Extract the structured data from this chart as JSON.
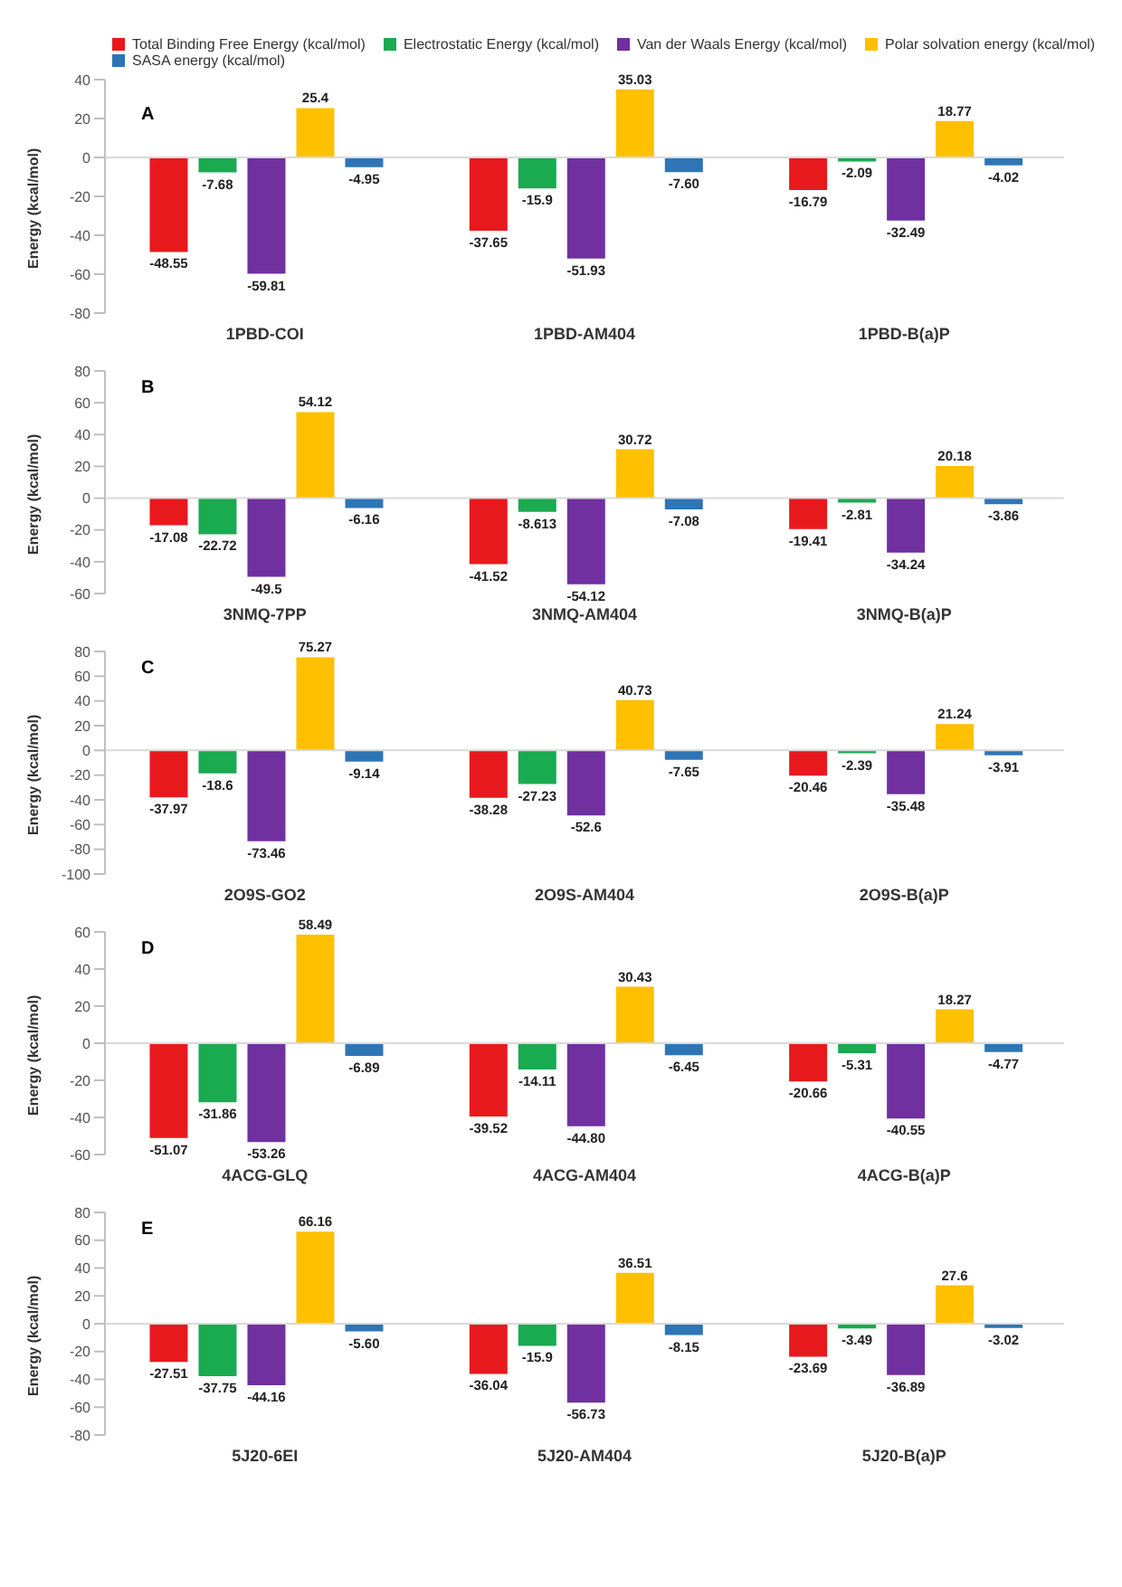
{
  "chart_data": [
    {
      "type": "bar",
      "ylabel": "Energy (kcal/mol)",
      "annotations": [
        "A"
      ],
      "categories": [
        "1PBD-COI",
        "1PBD-AM404",
        "1PBD-B(a)P"
      ],
      "legend": "top",
      "ylim": [
        -80,
        40
      ],
      "yticks": [
        -80,
        -60,
        -40,
        -20,
        0,
        20,
        40
      ],
      "ref_lines": [
        {
          "axis": "y",
          "value": 0,
          "color": "#d9d9d9"
        }
      ],
      "series": [
        {
          "name": "Total Binding Free Energy (kcal/mol)",
          "color": "#e8191d",
          "values": [
            -48.55,
            -37.65,
            -16.79
          ],
          "value_labels": [
            "-48.55",
            "-37.65",
            "-16.79"
          ]
        },
        {
          "name": "Electrostatic Energy (kcal/mol)",
          "color": "#1aaa50",
          "values": [
            -7.68,
            -15.9,
            -2.09
          ],
          "value_labels": [
            "-7.68",
            "-15.9",
            "-2.09"
          ]
        },
        {
          "name": "Van der Waals Energy (kcal/mol)",
          "color": "#7030a0",
          "values": [
            -59.81,
            -51.93,
            -32.49
          ],
          "value_labels": [
            "-59.81",
            "-51.93",
            "-32.49"
          ]
        },
        {
          "name": "Polar solvation energy (kcal/mol)",
          "color": "#ffc000",
          "values": [
            25.4,
            35.03,
            18.77
          ],
          "value_labels": [
            "25.4",
            "35.03",
            "18.77"
          ]
        },
        {
          "name": "SASA energy (kcal/mol)",
          "color": "#2e75b6",
          "values": [
            -4.95,
            -7.6,
            -4.02
          ],
          "value_labels": [
            "-4.95",
            "-7.60",
            "-4.02"
          ]
        }
      ]
    },
    {
      "type": "bar",
      "ylabel": "Energy (kcal/mol)",
      "annotations": [
        "B"
      ],
      "categories": [
        "3NMQ-7PP",
        "3NMQ-AM404",
        "3NMQ-B(a)P"
      ],
      "ylim": [
        -60,
        80
      ],
      "yticks": [
        -60,
        -40,
        -20,
        0,
        20,
        40,
        60,
        80
      ],
      "ref_lines": [
        {
          "axis": "y",
          "value": 0,
          "color": "#d9d9d9"
        }
      ],
      "series": [
        {
          "color": "#e8191d",
          "values": [
            -17.08,
            -41.52,
            -19.41
          ],
          "value_labels": [
            "-17.08",
            "-41.52",
            "-19.41"
          ]
        },
        {
          "color": "#1aaa50",
          "values": [
            -22.72,
            -8.613,
            -2.81
          ],
          "value_labels": [
            "-22.72",
            "-8.613",
            "-2.81"
          ]
        },
        {
          "color": "#7030a0",
          "values": [
            -49.5,
            -54.12,
            -34.24
          ],
          "value_labels": [
            "-49.5",
            "-54.12",
            "-34.24"
          ]
        },
        {
          "color": "#ffc000",
          "values": [
            54.12,
            30.72,
            20.18
          ],
          "value_labels": [
            "54.12",
            "30.72",
            "20.18"
          ]
        },
        {
          "color": "#2e75b6",
          "values": [
            -6.16,
            -7.08,
            -3.86
          ],
          "value_labels": [
            "-6.16",
            "-7.08",
            "-3.86"
          ]
        }
      ]
    },
    {
      "type": "bar",
      "ylabel": "Energy (kcal/mol)",
      "annotations": [
        "C"
      ],
      "categories": [
        "2O9S-GO2",
        "2O9S-AM404",
        "2O9S-B(a)P"
      ],
      "ylim": [
        -100,
        80
      ],
      "yticks": [
        -100,
        -80,
        -60,
        -40,
        -20,
        0,
        20,
        40,
        60,
        80
      ],
      "ref_lines": [
        {
          "axis": "y",
          "value": 0,
          "color": "#d9d9d9"
        }
      ],
      "series": [
        {
          "color": "#e8191d",
          "values": [
            -37.97,
            -38.28,
            -20.46
          ],
          "value_labels": [
            "-37.97",
            "-38.28",
            "-20.46"
          ]
        },
        {
          "color": "#1aaa50",
          "values": [
            -18.6,
            -27.23,
            -2.39
          ],
          "value_labels": [
            "-18.6",
            "-27.23",
            "-2.39"
          ]
        },
        {
          "color": "#7030a0",
          "values": [
            -73.46,
            -52.6,
            -35.48
          ],
          "value_labels": [
            "-73.46",
            "-52.6",
            "-35.48"
          ]
        },
        {
          "color": "#ffc000",
          "values": [
            75.27,
            40.73,
            21.24
          ],
          "value_labels": [
            "75.27",
            "40.73",
            "21.24"
          ]
        },
        {
          "color": "#2e75b6",
          "values": [
            -9.14,
            -7.65,
            -3.91
          ],
          "value_labels": [
            "-9.14",
            "-7.65",
            "-3.91"
          ]
        }
      ]
    },
    {
      "type": "bar",
      "ylabel": "Energy (kcal/mol)",
      "annotations": [
        "D"
      ],
      "categories": [
        "4ACG-GLQ",
        "4ACG-AM404",
        "4ACG-B(a)P"
      ],
      "ylim": [
        -60,
        60
      ],
      "yticks": [
        -60,
        -40,
        -20,
        0,
        20,
        40,
        60
      ],
      "ref_lines": [
        {
          "axis": "y",
          "value": 0,
          "color": "#d9d9d9"
        }
      ],
      "series": [
        {
          "color": "#e8191d",
          "values": [
            -51.07,
            -39.52,
            -20.66
          ],
          "value_labels": [
            "-51.07",
            "-39.52",
            "-20.66"
          ]
        },
        {
          "color": "#1aaa50",
          "values": [
            -31.86,
            -14.11,
            -5.31
          ],
          "value_labels": [
            "-31.86",
            "-14.11",
            "-5.31"
          ]
        },
        {
          "color": "#7030a0",
          "values": [
            -53.26,
            -44.8,
            -40.55
          ],
          "value_labels": [
            "-53.26",
            "-44.80",
            "-40.55"
          ]
        },
        {
          "color": "#ffc000",
          "values": [
            58.49,
            30.43,
            18.27
          ],
          "value_labels": [
            "58.49",
            "30.43",
            "18.27"
          ]
        },
        {
          "color": "#2e75b6",
          "values": [
            -6.89,
            -6.45,
            -4.77
          ],
          "value_labels": [
            "-6.89",
            "-6.45",
            "-4.77"
          ]
        }
      ]
    },
    {
      "type": "bar",
      "ylabel": "Energy (kcal/mol)",
      "annotations": [
        "E"
      ],
      "categories": [
        "5J20-6EI",
        "5J20-AM404",
        "5J20-B(a)P"
      ],
      "ylim": [
        -80,
        80
      ],
      "yticks": [
        -80,
        -60,
        -40,
        -20,
        0,
        20,
        40,
        60,
        80
      ],
      "ref_lines": [
        {
          "axis": "y",
          "value": 0,
          "color": "#d9d9d9"
        }
      ],
      "series": [
        {
          "color": "#e8191d",
          "values": [
            -27.51,
            -36.04,
            -23.69
          ],
          "value_labels": [
            "-27.51",
            "-36.04",
            "-23.69"
          ]
        },
        {
          "color": "#1aaa50",
          "values": [
            -37.75,
            -15.9,
            -3.49
          ],
          "value_labels": [
            "-37.75",
            "-15.9",
            "-3.49"
          ]
        },
        {
          "color": "#7030a0",
          "values": [
            -44.16,
            -56.73,
            -36.89
          ],
          "value_labels": [
            "-44.16",
            "-56.73",
            "-36.89"
          ]
        },
        {
          "color": "#ffc000",
          "values": [
            66.16,
            36.51,
            27.6
          ],
          "value_labels": [
            "66.16",
            "36.51",
            "27.6"
          ]
        },
        {
          "color": "#2e75b6",
          "values": [
            -5.6,
            -8.15,
            -3.02
          ],
          "value_labels": [
            "-5.60",
            "-8.15",
            "-3.02"
          ]
        }
      ]
    }
  ]
}
